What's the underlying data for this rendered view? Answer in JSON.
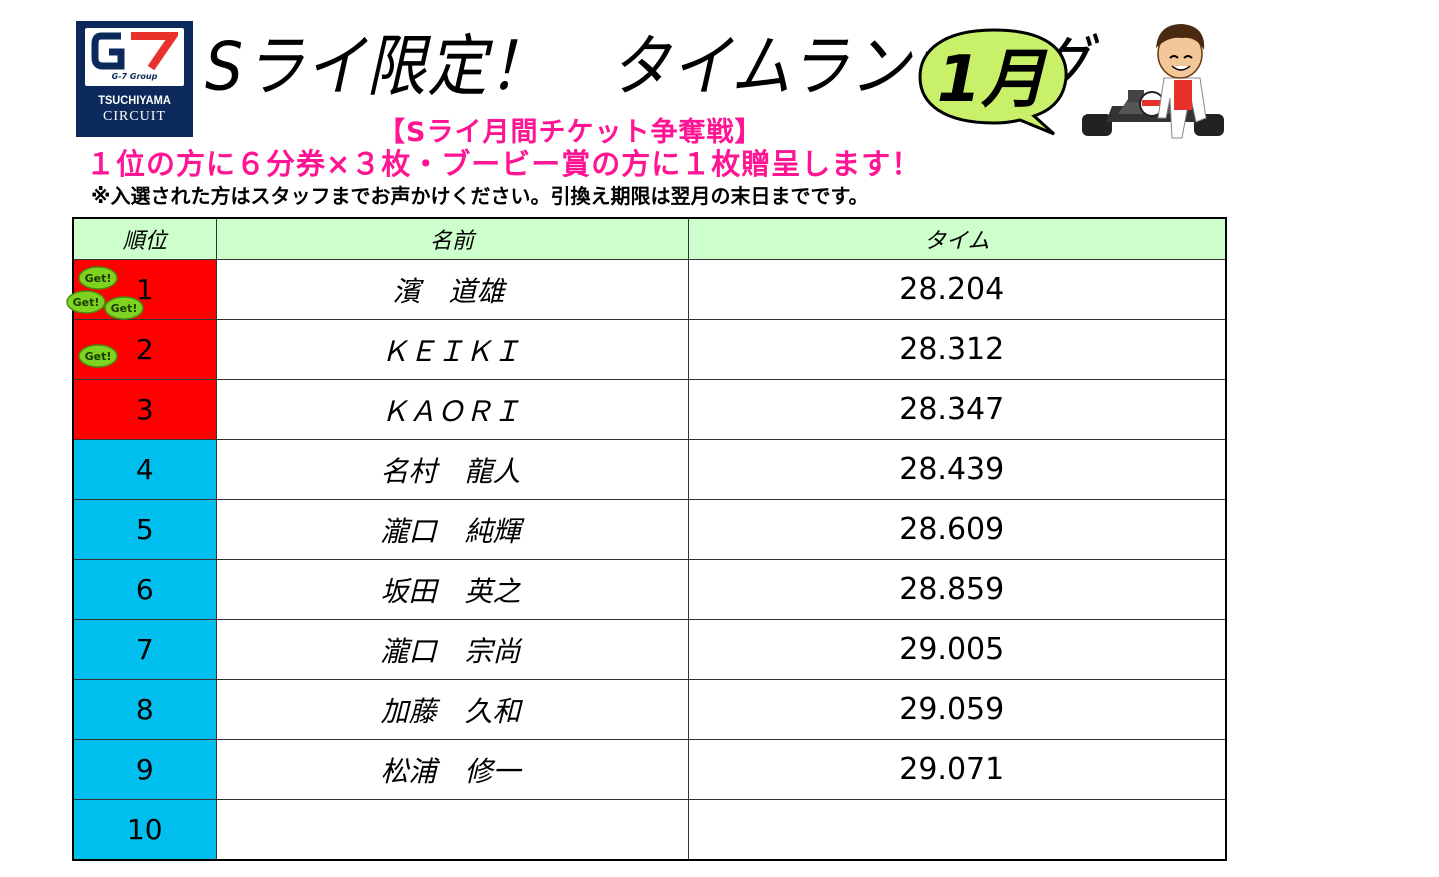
{
  "logo": {
    "mark": "G7",
    "group": "G-7 Group",
    "line1": "TSUCHIYAMA",
    "line2": "CIRCUIT"
  },
  "title": "Sライ限定！　タイムランキング",
  "month_badge": "1月",
  "subtitle": "【Sライ月間チケット争奪戦】",
  "prize_line": "１位の方に６分券×３枚・ブービー賞の方に１枚贈呈します！",
  "note": "※入選された方はスタッフまでお声かけください。引換え期限は翌月の末日までです。",
  "badge_text": "Get!",
  "table": {
    "headers": {
      "rank": "順位",
      "name": "名前",
      "time": "タイム"
    },
    "rows": [
      {
        "rank": "1",
        "name": "濱　道雄",
        "time": "28.204",
        "tier": "top",
        "badges": 3
      },
      {
        "rank": "2",
        "name": "ＫＥＩＫＩ",
        "time": "28.312",
        "tier": "top",
        "badges": 1
      },
      {
        "rank": "3",
        "name": "ＫＡＯＲＩ",
        "time": "28.347",
        "tier": "top",
        "badges": 0
      },
      {
        "rank": "4",
        "name": "名村　龍人",
        "time": "28.439",
        "tier": "other",
        "badges": 0
      },
      {
        "rank": "5",
        "name": "瀧口　純輝",
        "time": "28.609",
        "tier": "other",
        "badges": 0
      },
      {
        "rank": "6",
        "name": "坂田　英之",
        "time": "28.859",
        "tier": "other",
        "badges": 0
      },
      {
        "rank": "7",
        "name": "瀧口　宗尚",
        "time": "29.005",
        "tier": "other",
        "badges": 0
      },
      {
        "rank": "8",
        "name": "加藤　久和",
        "time": "29.059",
        "tier": "other",
        "badges": 0
      },
      {
        "rank": "9",
        "name": "松浦　修一",
        "time": "29.071",
        "tier": "other",
        "badges": 0
      },
      {
        "rank": "10",
        "name": "",
        "time": "",
        "tier": "other",
        "badges": 0
      }
    ]
  },
  "colors": {
    "top_rank": "#ff0000",
    "other_rank": "#00bfef",
    "header_bg": "#ccffcc",
    "accent_pink": "#ff1493",
    "badge_green": "#7ed321",
    "bubble_green": "#c8f068"
  }
}
